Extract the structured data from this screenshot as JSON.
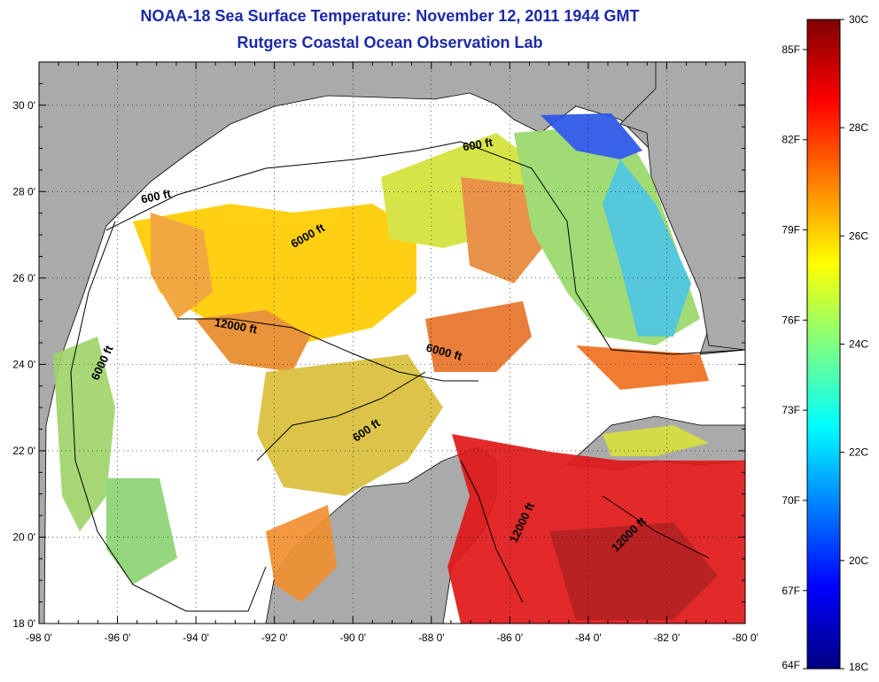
{
  "title": {
    "line1": "NOAA-18 Sea Surface Temperature:  November 12, 2011 1944 GMT",
    "line2": "Rutgers Coastal Ocean Observation Lab"
  },
  "map": {
    "lon_range": [
      -98,
      -80
    ],
    "lat_range": [
      18,
      31
    ],
    "lon_ticks": [
      "-98 0'",
      "-96 0'",
      "-94 0'",
      "-92 0'",
      "-90 0'",
      "-88 0'",
      "-86 0'",
      "-84 0'",
      "-82 0'",
      "-80 0'"
    ],
    "lat_ticks": [
      "18 0'",
      "20 0'",
      "22 0'",
      "24 0'",
      "26 0'",
      "28 0'",
      "30 0'"
    ],
    "land_color": "#aaaaaa",
    "nodata_color": "#ffffff",
    "grid": "dotted",
    "contour_labels": [
      {
        "text": "600 ft",
        "lon": -86.8,
        "lat": 29.0
      },
      {
        "text": "600 ft",
        "lon": -95.0,
        "lat": 27.8
      },
      {
        "text": "6000 ft",
        "lon": -91.1,
        "lat": 26.9
      },
      {
        "text": "12000 ft",
        "lon": -93.0,
        "lat": 24.8
      },
      {
        "text": "6000 ft",
        "lon": -96.3,
        "lat": 24.0
      },
      {
        "text": "6000 ft",
        "lon": -87.7,
        "lat": 24.2
      },
      {
        "text": "600 ft",
        "lon": -89.6,
        "lat": 22.4
      },
      {
        "text": "12000 ft",
        "lon": -85.6,
        "lat": 20.3
      },
      {
        "text": "12000 ft",
        "lon": -82.9,
        "lat": 20.0
      }
    ]
  },
  "colorbar": {
    "colors": [
      "#00007f",
      "#0000ff",
      "#007fff",
      "#00ffff",
      "#7fff7f",
      "#ffff00",
      "#ff7f00",
      "#ff0000",
      "#7f0000"
    ],
    "fahrenheit_labels": [
      "64F",
      "67F",
      "70F",
      "73F",
      "76F",
      "79F",
      "82F",
      "85F"
    ],
    "celsius_labels": [
      "18C",
      "20C",
      "22C",
      "24C",
      "26C",
      "28C",
      "30C"
    ],
    "f_values": [
      64,
      67,
      70,
      73,
      76,
      79,
      82,
      85
    ],
    "c_values": [
      18,
      20,
      22,
      24,
      26,
      28,
      30
    ],
    "range_c": [
      18,
      30
    ]
  }
}
